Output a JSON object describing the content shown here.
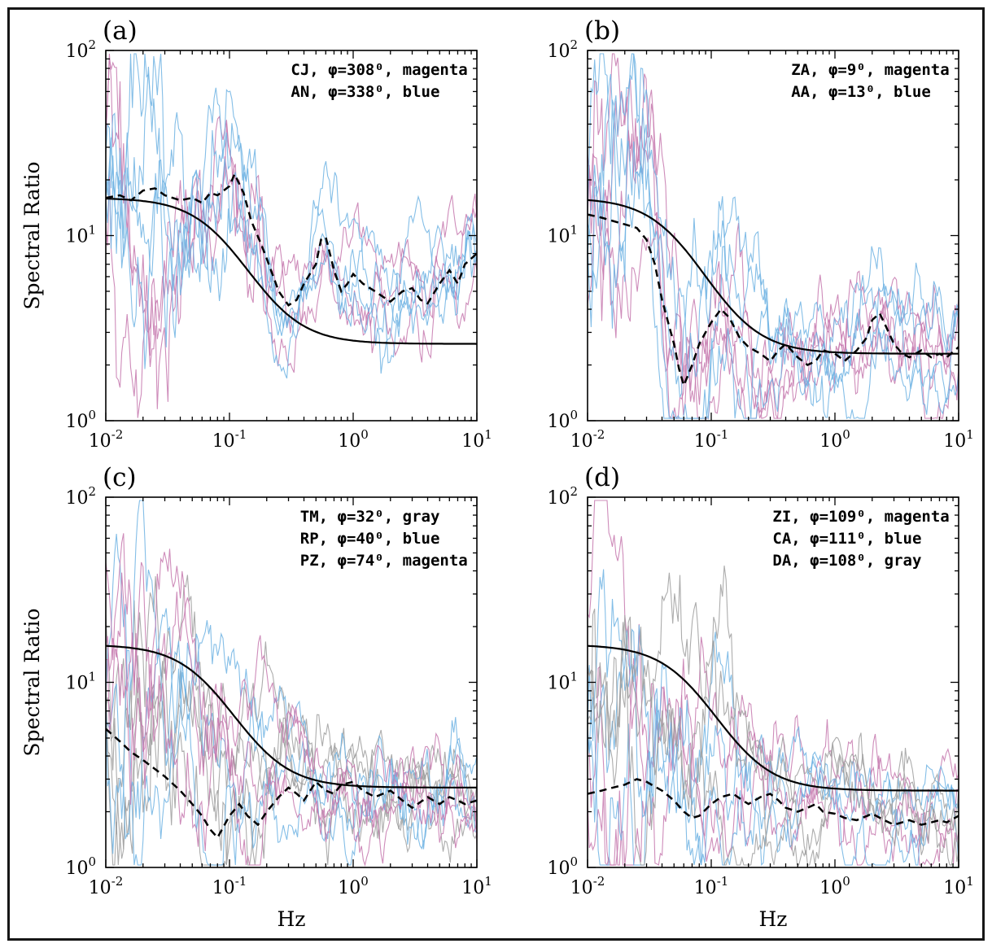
{
  "figure": {
    "background": "#ffffff",
    "border_color": "#161616"
  },
  "axes": {
    "x": {
      "label": "Hz",
      "min_exp": -2,
      "max_exp": 1,
      "tick_exponents": [
        -2,
        -1,
        0,
        1
      ]
    },
    "y": {
      "label": "Spectral Ratio",
      "min_exp": 0,
      "max_exp": 2,
      "tick_exponents": [
        0,
        1,
        2
      ]
    }
  },
  "colors": {
    "magenta": "#c678ae",
    "blue": "#6fb3e3",
    "gray": "#9e9e9e",
    "curve": "#000000"
  },
  "chart_data": [
    {
      "type": "line",
      "panel": "(a)",
      "xscale": "log",
      "yscale": "log",
      "xlim": [
        0.01,
        10
      ],
      "ylim": [
        1,
        100
      ],
      "xlabel": "",
      "ylabel": "Spectral Ratio",
      "legend": [
        "CJ, φ=308⁰, magenta",
        "AN, φ=338⁰, blue"
      ],
      "model_curve": {
        "name": "theoretical-ratio",
        "low_ratio": 16,
        "high_ratio": 2.6,
        "corner_hz": 0.09,
        "exponent": 2
      },
      "average_curve": {
        "name": "observed-average",
        "points": [
          [
            0.01,
            16
          ],
          [
            0.013,
            16.5
          ],
          [
            0.016,
            15.5
          ],
          [
            0.02,
            17.5
          ],
          [
            0.025,
            18
          ],
          [
            0.03,
            16.5
          ],
          [
            0.04,
            15.5
          ],
          [
            0.05,
            16
          ],
          [
            0.06,
            15
          ],
          [
            0.07,
            17
          ],
          [
            0.08,
            16.5
          ],
          [
            0.1,
            18.5
          ],
          [
            0.11,
            21.5
          ],
          [
            0.13,
            17
          ],
          [
            0.15,
            12
          ],
          [
            0.18,
            9
          ],
          [
            0.2,
            7.5
          ],
          [
            0.25,
            5
          ],
          [
            0.3,
            4.2
          ],
          [
            0.35,
            4.5
          ],
          [
            0.4,
            5.5
          ],
          [
            0.5,
            7
          ],
          [
            0.55,
            9.5
          ],
          [
            0.6,
            9.8
          ],
          [
            0.7,
            6.5
          ],
          [
            0.8,
            5
          ],
          [
            0.9,
            5.5
          ],
          [
            1.0,
            6.2
          ],
          [
            1.2,
            5.5
          ],
          [
            1.5,
            5
          ],
          [
            1.8,
            4.6
          ],
          [
            2.0,
            4.4
          ],
          [
            2.5,
            5
          ],
          [
            3.0,
            5.2
          ],
          [
            3.5,
            4.5
          ],
          [
            4.0,
            4.3
          ],
          [
            5.0,
            5.5
          ],
          [
            6.0,
            6.5
          ],
          [
            7.0,
            5.5
          ],
          [
            8.0,
            7
          ],
          [
            10,
            8
          ]
        ]
      },
      "traces": [
        {
          "color_name": "magenta",
          "count": 3,
          "seed": 11
        },
        {
          "color_name": "blue",
          "count": 4,
          "seed": 12
        }
      ],
      "trace_noise": {
        "base": 0.065,
        "low_boost": 3.2,
        "smooth": 0.93
      },
      "traces_center": "average",
      "seed_offset": 1
    },
    {
      "type": "line",
      "panel": "(b)",
      "xscale": "log",
      "yscale": "log",
      "xlim": [
        0.01,
        10
      ],
      "ylim": [
        1,
        100
      ],
      "xlabel": "",
      "ylabel": "",
      "legend": [
        "ZA, φ=9⁰, magenta",
        "AA, φ=13⁰, blue"
      ],
      "model_curve": {
        "name": "theoretical-ratio",
        "low_ratio": 16,
        "high_ratio": 2.3,
        "corner_hz": 0.055,
        "exponent": 2
      },
      "average_curve": {
        "name": "observed-average",
        "points": [
          [
            0.01,
            13
          ],
          [
            0.013,
            12.5
          ],
          [
            0.016,
            12
          ],
          [
            0.02,
            11.5
          ],
          [
            0.025,
            11
          ],
          [
            0.03,
            9.5
          ],
          [
            0.035,
            7
          ],
          [
            0.04,
            4.5
          ],
          [
            0.05,
            2.6
          ],
          [
            0.055,
            1.9
          ],
          [
            0.06,
            1.55
          ],
          [
            0.07,
            2.0
          ],
          [
            0.08,
            2.6
          ],
          [
            0.09,
            3.0
          ],
          [
            0.1,
            3.4
          ],
          [
            0.12,
            4.0
          ],
          [
            0.14,
            3.6
          ],
          [
            0.17,
            2.8
          ],
          [
            0.2,
            2.5
          ],
          [
            0.25,
            2.3
          ],
          [
            0.3,
            2.1
          ],
          [
            0.35,
            2.4
          ],
          [
            0.4,
            2.6
          ],
          [
            0.5,
            2.2
          ],
          [
            0.6,
            2.0
          ],
          [
            0.7,
            2.1
          ],
          [
            0.8,
            2.4
          ],
          [
            1.0,
            2.3
          ],
          [
            1.2,
            2.1
          ],
          [
            1.5,
            2.4
          ],
          [
            1.8,
            2.8
          ],
          [
            2.0,
            3.5
          ],
          [
            2.3,
            3.8
          ],
          [
            2.6,
            3.2
          ],
          [
            3.0,
            2.6
          ],
          [
            3.5,
            2.3
          ],
          [
            4.0,
            2.2
          ],
          [
            5.0,
            2.4
          ],
          [
            6.0,
            2.2
          ],
          [
            7.0,
            2.3
          ],
          [
            8.0,
            2.2
          ],
          [
            10,
            2.5
          ]
        ]
      },
      "traces": [
        {
          "color_name": "magenta",
          "count": 4,
          "seed": 21
        },
        {
          "color_name": "blue",
          "count": 4,
          "seed": 22
        }
      ],
      "trace_noise": {
        "base": 0.07,
        "low_boost": 2.8,
        "smooth": 0.92
      },
      "traces_center": "average",
      "seed_offset": 2
    },
    {
      "type": "line",
      "panel": "(c)",
      "xscale": "log",
      "yscale": "log",
      "xlim": [
        0.01,
        10
      ],
      "ylim": [
        1,
        100
      ],
      "xlabel": "Hz",
      "ylabel": "Spectral Ratio",
      "legend": [
        "TM, φ=32⁰, gray",
        "RP, φ=40⁰, blue",
        "PZ, φ=74⁰, magenta"
      ],
      "model_curve": {
        "name": "theoretical-ratio",
        "low_ratio": 16,
        "high_ratio": 2.7,
        "corner_hz": 0.07,
        "exponent": 2
      },
      "average_curve": {
        "name": "observed-average",
        "points": [
          [
            0.01,
            5.6
          ],
          [
            0.013,
            4.8
          ],
          [
            0.016,
            4.2
          ],
          [
            0.02,
            3.8
          ],
          [
            0.025,
            3.4
          ],
          [
            0.03,
            3.1
          ],
          [
            0.04,
            2.6
          ],
          [
            0.05,
            2.2
          ],
          [
            0.06,
            1.9
          ],
          [
            0.07,
            1.6
          ],
          [
            0.08,
            1.45
          ],
          [
            0.1,
            1.9
          ],
          [
            0.12,
            2.2
          ],
          [
            0.14,
            1.9
          ],
          [
            0.17,
            1.7
          ],
          [
            0.2,
            2.0
          ],
          [
            0.25,
            2.4
          ],
          [
            0.3,
            2.7
          ],
          [
            0.35,
            2.5
          ],
          [
            0.4,
            2.3
          ],
          [
            0.5,
            2.9
          ],
          [
            0.6,
            2.6
          ],
          [
            0.7,
            2.5
          ],
          [
            0.8,
            2.8
          ],
          [
            1.0,
            2.9
          ],
          [
            1.2,
            2.6
          ],
          [
            1.5,
            2.4
          ],
          [
            2.0,
            2.6
          ],
          [
            2.5,
            2.3
          ],
          [
            3.0,
            2.1
          ],
          [
            4.0,
            2.4
          ],
          [
            5.0,
            2.2
          ],
          [
            6.0,
            2.4
          ],
          [
            7.0,
            2.3
          ],
          [
            8.0,
            2.2
          ],
          [
            10,
            2.3
          ]
        ]
      },
      "traces": [
        {
          "color_name": "gray",
          "count": 4,
          "seed": 31
        },
        {
          "color_name": "blue",
          "count": 3,
          "seed": 32
        },
        {
          "color_name": "magenta",
          "count": 3,
          "seed": 33
        }
      ],
      "trace_noise": {
        "base": 0.07,
        "low_boost": 2.6,
        "smooth": 0.92
      },
      "traces_center": "blend",
      "seed_offset": 3
    },
    {
      "type": "line",
      "panel": "(d)",
      "xscale": "log",
      "yscale": "log",
      "xlim": [
        0.01,
        10
      ],
      "ylim": [
        1,
        100
      ],
      "xlabel": "Hz",
      "ylabel": "",
      "legend": [
        "ZI, φ=109⁰, magenta",
        "CA, φ=111⁰, blue",
        "DA, φ=108⁰, gray"
      ],
      "model_curve": {
        "name": "theoretical-ratio",
        "low_ratio": 16,
        "high_ratio": 2.6,
        "corner_hz": 0.07,
        "exponent": 2
      },
      "average_curve": {
        "name": "observed-average",
        "points": [
          [
            0.01,
            2.5
          ],
          [
            0.013,
            2.6
          ],
          [
            0.016,
            2.7
          ],
          [
            0.02,
            2.8
          ],
          [
            0.025,
            3.0
          ],
          [
            0.03,
            2.9
          ],
          [
            0.04,
            2.6
          ],
          [
            0.05,
            2.3
          ],
          [
            0.06,
            2.0
          ],
          [
            0.07,
            1.85
          ],
          [
            0.08,
            1.9
          ],
          [
            0.1,
            2.2
          ],
          [
            0.12,
            2.4
          ],
          [
            0.15,
            2.5
          ],
          [
            0.18,
            2.3
          ],
          [
            0.2,
            2.2
          ],
          [
            0.25,
            2.4
          ],
          [
            0.3,
            2.5
          ],
          [
            0.35,
            2.3
          ],
          [
            0.4,
            2.1
          ],
          [
            0.5,
            2.0
          ],
          [
            0.6,
            2.1
          ],
          [
            0.7,
            2.2
          ],
          [
            0.8,
            2.0
          ],
          [
            1.0,
            1.95
          ],
          [
            1.2,
            1.85
          ],
          [
            1.5,
            1.8
          ],
          [
            2.0,
            1.95
          ],
          [
            2.5,
            1.8
          ],
          [
            3.0,
            1.7
          ],
          [
            4.0,
            1.8
          ],
          [
            5.0,
            1.7
          ],
          [
            6.0,
            1.75
          ],
          [
            7.0,
            1.8
          ],
          [
            8.0,
            1.75
          ],
          [
            10,
            1.9
          ]
        ]
      },
      "traces": [
        {
          "color_name": "magenta",
          "count": 3,
          "seed": 41
        },
        {
          "color_name": "blue",
          "count": 3,
          "seed": 42
        },
        {
          "color_name": "gray",
          "count": 3,
          "seed": 43
        }
      ],
      "trace_noise": {
        "base": 0.07,
        "low_boost": 2.6,
        "smooth": 0.92
      },
      "traces_center": "blend",
      "seed_offset": 4
    }
  ]
}
